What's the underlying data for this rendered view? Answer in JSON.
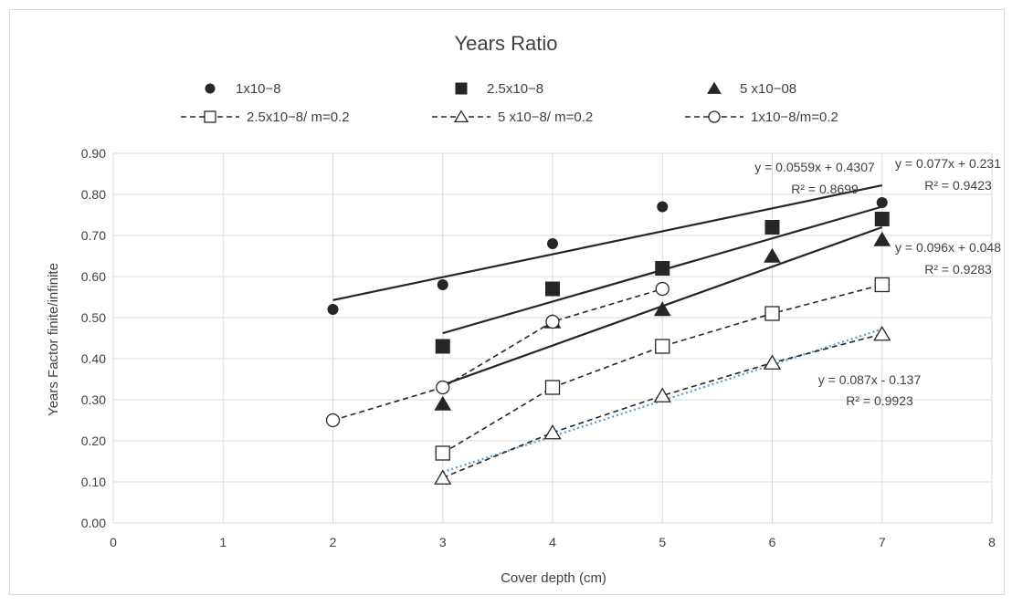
{
  "chart_data": {
    "type": "scatter",
    "title": "Years Ratio",
    "xlabel": "Cover depth (cm)",
    "ylabel": "Years Factor finite/infinite",
    "xlim": [
      0,
      8
    ],
    "ylim": [
      0,
      0.9
    ],
    "x_ticks": [
      "0",
      "1",
      "2",
      "3",
      "4",
      "5",
      "6",
      "7",
      "8"
    ],
    "y_ticks": [
      "0.00",
      "0.10",
      "0.20",
      "0.30",
      "0.40",
      "0.50",
      "0.60",
      "0.70",
      "0.80",
      "0.90"
    ],
    "grid": true,
    "legend_position": "top",
    "series": [
      {
        "name": "1x10−8",
        "marker": "circle-filled",
        "line": "none",
        "points": [
          [
            2,
            0.52
          ],
          [
            3,
            0.58
          ],
          [
            4,
            0.68
          ],
          [
            5,
            0.77
          ],
          [
            7,
            0.78
          ]
        ]
      },
      {
        "name": "2.5x10−8",
        "marker": "square-filled",
        "line": "none",
        "points": [
          [
            3,
            0.43
          ],
          [
            4,
            0.57
          ],
          [
            5,
            0.62
          ],
          [
            6,
            0.72
          ],
          [
            7,
            0.74
          ]
        ]
      },
      {
        "name": "5 x10−08",
        "marker": "triangle-filled",
        "line": "none",
        "points": [
          [
            3,
            0.29
          ],
          [
            4,
            0.49
          ],
          [
            5,
            0.52
          ],
          [
            6,
            0.65
          ],
          [
            7,
            0.69
          ]
        ]
      },
      {
        "name": "2.5x10−8/ m=0.2",
        "marker": "square-open",
        "line": "dashed",
        "points": [
          [
            3,
            0.17
          ],
          [
            4,
            0.33
          ],
          [
            5,
            0.43
          ],
          [
            6,
            0.51
          ],
          [
            7,
            0.58
          ]
        ]
      },
      {
        "name": "5 x10−8/ m=0.2",
        "marker": "triangle-open",
        "line": "dashed",
        "points": [
          [
            3,
            0.11
          ],
          [
            4,
            0.22
          ],
          [
            5,
            0.31
          ],
          [
            6,
            0.39
          ],
          [
            7,
            0.46
          ]
        ]
      },
      {
        "name": "1x10−8/m=0.2",
        "marker": "circle-open",
        "line": "dashed",
        "points": [
          [
            2,
            0.25
          ],
          [
            3,
            0.33
          ],
          [
            4,
            0.49
          ],
          [
            5,
            0.57
          ]
        ]
      }
    ],
    "trendlines": [
      {
        "slope": 0.0559,
        "intercept": 0.4307,
        "x_range": [
          2,
          7
        ],
        "style": "solid",
        "equation": "y = 0.0559x + 0.4307",
        "r2": "R² = 0.8699"
      },
      {
        "slope": 0.077,
        "intercept": 0.231,
        "x_range": [
          3,
          7
        ],
        "style": "solid",
        "equation": "y = 0.077x + 0.231",
        "r2": "R² = 0.9423"
      },
      {
        "slope": 0.096,
        "intercept": 0.048,
        "x_range": [
          3,
          7
        ],
        "style": "solid",
        "equation": "y = 0.096x + 0.048",
        "r2": "R² = 0.9283"
      },
      {
        "slope": 0.087,
        "intercept": -0.137,
        "x_range": [
          3,
          7
        ],
        "style": "dotted",
        "equation": "y = 0.087x - 0.137",
        "r2": "R² = 0.9923"
      }
    ],
    "colors": {
      "markers": "#262626",
      "text": "#404040",
      "grid": "#d9d9d9",
      "dotted_trend": "#5b9bd5"
    }
  }
}
